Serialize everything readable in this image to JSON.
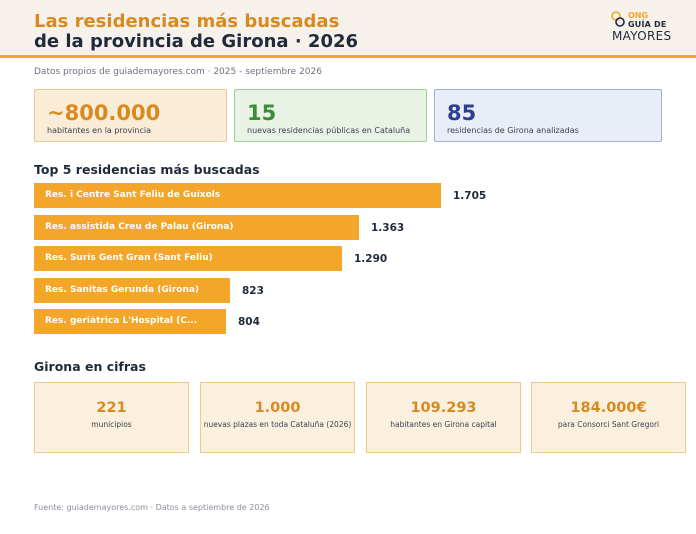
{
  "header": {
    "title_line1": "Las residencias más buscadas",
    "title_line2": "de la provincia de Girona · 2026",
    "logo": {
      "ong": "ONG",
      "guia": "GUÍA DE",
      "mayores": "MAYORES",
      "mark_icon": "hearts-icon"
    }
  },
  "subtitle": "Datos propios de guiademayores.com · 2025 - septiembre 2026",
  "kpis": [
    {
      "value": "~800.000",
      "label": "habitantes en la provincia",
      "color": "#d98a1f"
    },
    {
      "value": "15",
      "label": "nuevas residencias públicas en Cataluña",
      "color": "#3c8c3a"
    },
    {
      "value": "85",
      "label": "residencias de Girona analizadas",
      "color": "#2c3f8c"
    }
  ],
  "chart_data": {
    "type": "bar",
    "orientation": "horizontal",
    "title": "Top 5 residencias más buscadas",
    "categories": [
      "Res. i Centre Sant Feliu de Guíxols",
      "Res. assistida Creu de Palau (Girona)",
      "Res. Surís Gent Gran (Sant Feliu)",
      "Res. Sanitas Gerunda (Girona)",
      "Res. geriàtrica L'Hospital (C..."
    ],
    "values": [
      1705,
      1363,
      1290,
      823,
      804
    ],
    "value_labels": [
      "1.705",
      "1.363",
      "1.290",
      "823",
      "804"
    ],
    "bar_color": "#f4a62a",
    "xlim": [
      0,
      1705
    ]
  },
  "cifras": {
    "title": "Girona en cifras",
    "cards": [
      {
        "value": "221",
        "label": "municipios"
      },
      {
        "value": "1.000",
        "label": "nuevas plazas en toda Cataluña (2026)"
      },
      {
        "value": "109.293",
        "label": "habitantes en Girona capital"
      },
      {
        "value": "184.000€",
        "label": "para Consorci Sant Gregori"
      }
    ]
  },
  "footer": "Fuente: guiademayores.com · Datos a septiembre de 2026"
}
